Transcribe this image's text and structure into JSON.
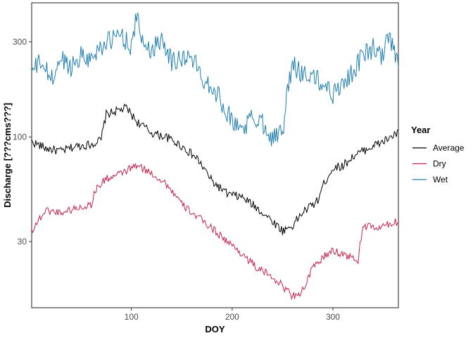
{
  "chart_data": {
    "type": "line",
    "title": "",
    "xlabel": "DOY",
    "ylabel": "Discharge [???cms???]",
    "y_scale": "log",
    "xlim": [
      1,
      365
    ],
    "ylim": [
      14,
      470
    ],
    "x_ticks": [
      100,
      200,
      300
    ],
    "y_ticks": [
      30,
      100,
      300
    ],
    "grid": false,
    "legend": {
      "title": "Year",
      "placement": "right"
    },
    "series": [
      {
        "name": "Average",
        "color": "#000000",
        "x": [
          1,
          15,
          30,
          45,
          60,
          70,
          75,
          85,
          95,
          105,
          120,
          135,
          150,
          165,
          180,
          195,
          210,
          225,
          240,
          250,
          260,
          270,
          285,
          290,
          300,
          310,
          320,
          335,
          350,
          365
        ],
        "y": [
          95,
          88,
          85,
          90,
          92,
          97,
          130,
          135,
          140,
          120,
          105,
          100,
          90,
          78,
          60,
          52,
          50,
          44,
          38,
          34,
          36,
          42,
          48,
          57,
          70,
          72,
          80,
          88,
          95,
          105
        ]
      },
      {
        "name": "Dry",
        "color": "#c7254e",
        "x": [
          1,
          15,
          30,
          45,
          60,
          65,
          75,
          85,
          95,
          105,
          120,
          135,
          150,
          165,
          180,
          195,
          210,
          225,
          240,
          250,
          260,
          270,
          280,
          290,
          300,
          310,
          325,
          330,
          345,
          365
        ],
        "y": [
          34,
          43,
          42,
          44,
          46,
          55,
          62,
          64,
          68,
          72,
          66,
          58,
          46,
          40,
          35,
          30,
          26,
          22,
          20,
          18,
          16,
          17,
          22,
          25,
          27,
          26,
          24,
          36,
          35,
          38
        ]
      },
      {
        "name": "Wet",
        "color": "#1f7fb0",
        "x": [
          1,
          10,
          20,
          25,
          30,
          40,
          50,
          60,
          70,
          80,
          90,
          100,
          105,
          110,
          120,
          130,
          140,
          150,
          160,
          170,
          180,
          190,
          200,
          210,
          220,
          230,
          240,
          250,
          260,
          270,
          280,
          290,
          300,
          310,
          320,
          330,
          340,
          350,
          355,
          365
        ],
        "y": [
          210,
          240,
          195,
          210,
          250,
          225,
          260,
          245,
          290,
          305,
          330,
          280,
          400,
          310,
          270,
          320,
          240,
          250,
          250,
          200,
          180,
          150,
          120,
          110,
          125,
          120,
          100,
          105,
          230,
          210,
          200,
          185,
          165,
          190,
          210,
          260,
          280,
          250,
          320,
          230
        ]
      }
    ]
  }
}
